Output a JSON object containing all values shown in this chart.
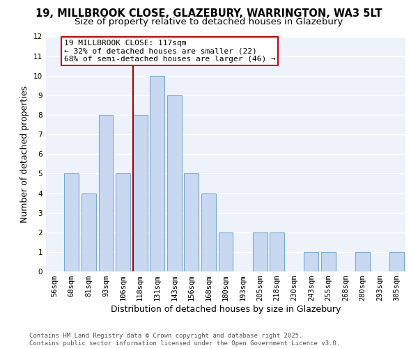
{
  "title_line1": "19, MILLBROOK CLOSE, GLAZEBURY, WARRINGTON, WA3 5LT",
  "title_line2": "Size of property relative to detached houses in Glazebury",
  "xlabel": "Distribution of detached houses by size in Glazebury",
  "ylabel": "Number of detached properties",
  "bar_labels": [
    "56sqm",
    "68sqm",
    "81sqm",
    "93sqm",
    "106sqm",
    "118sqm",
    "131sqm",
    "143sqm",
    "156sqm",
    "168sqm",
    "180sqm",
    "193sqm",
    "205sqm",
    "218sqm",
    "230sqm",
    "243sqm",
    "255sqm",
    "268sqm",
    "280sqm",
    "293sqm",
    "305sqm"
  ],
  "bar_values": [
    0,
    5,
    4,
    8,
    5,
    8,
    10,
    9,
    5,
    4,
    2,
    0,
    2,
    2,
    0,
    1,
    1,
    0,
    1,
    0,
    1
  ],
  "normal_color": "#c8d8f0",
  "bar_edge_color": "#7aaad0",
  "vline_index": 5,
  "vline_color": "#aa0000",
  "annotation_text": "19 MILLBROOK CLOSE: 117sqm\n← 32% of detached houses are smaller (22)\n68% of semi-detached houses are larger (46) →",
  "annotation_box_color": "#ffffff",
  "annotation_box_edge": "#cc0000",
  "ylim": [
    0,
    12
  ],
  "yticks": [
    0,
    1,
    2,
    3,
    4,
    5,
    6,
    7,
    8,
    9,
    10,
    11,
    12
  ],
  "footer_line1": "Contains HM Land Registry data © Crown copyright and database right 2025.",
  "footer_line2": "Contains public sector information licensed under the Open Government Licence v3.0.",
  "bg_color": "#ffffff",
  "plot_bg_color": "#eef2fb",
  "grid_color": "#ffffff",
  "title_fontsize": 10.5,
  "subtitle_fontsize": 9.5,
  "tick_fontsize": 7.5,
  "label_fontsize": 9,
  "footer_fontsize": 6.5,
  "ann_fontsize": 8
}
